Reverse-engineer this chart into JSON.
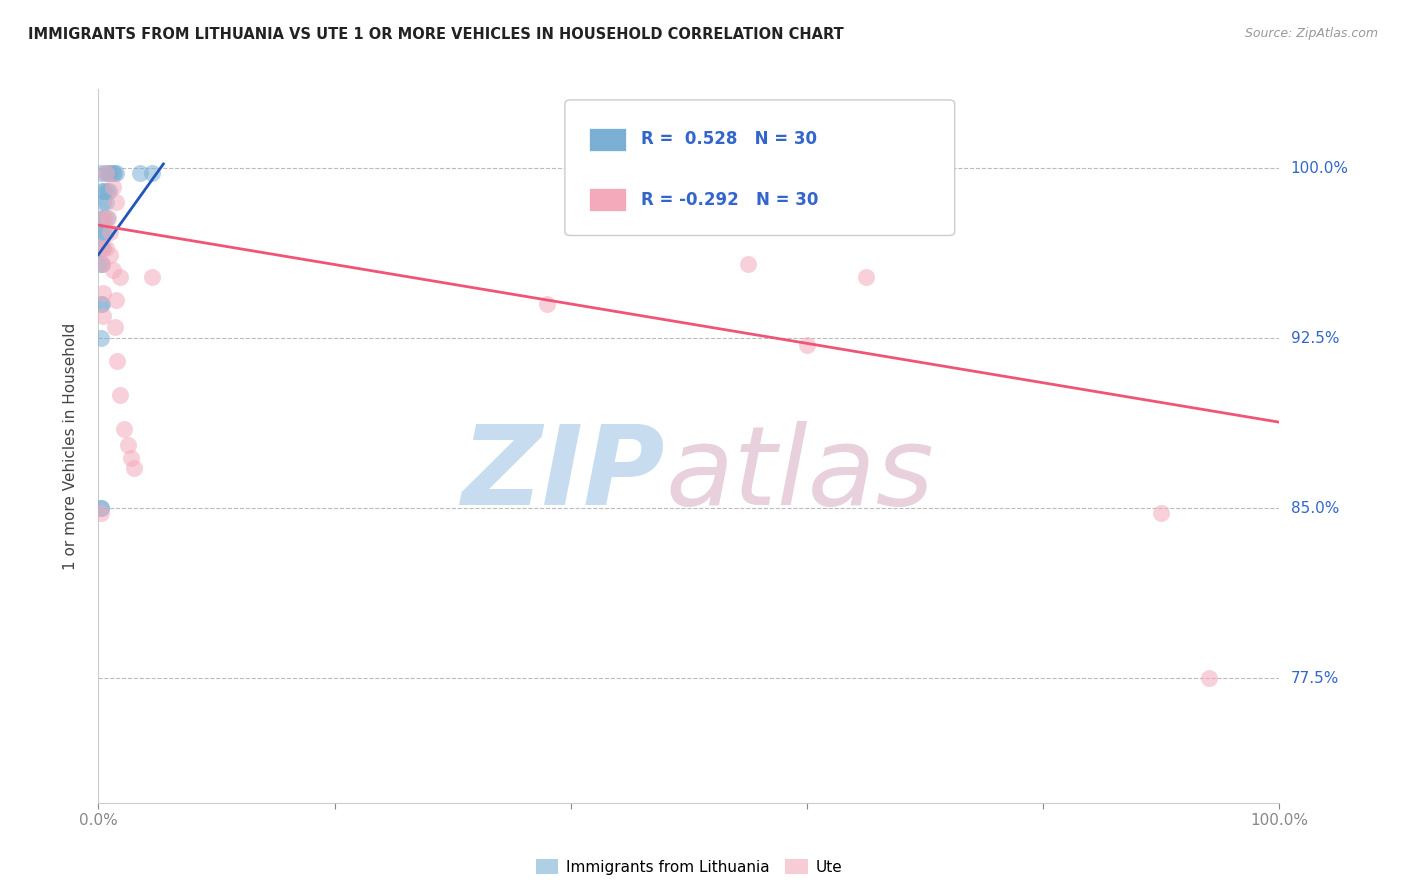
{
  "title": "IMMIGRANTS FROM LITHUANIA VS UTE 1 OR MORE VEHICLES IN HOUSEHOLD CORRELATION CHART",
  "source": "Source: ZipAtlas.com",
  "ylabel": "1 or more Vehicles in Household",
  "ytick_labels": [
    "100.0%",
    "92.5%",
    "85.0%",
    "77.5%"
  ],
  "ytick_values": [
    1.0,
    0.925,
    0.85,
    0.775
  ],
  "xlim": [
    0.0,
    1.0
  ],
  "ylim": [
    0.72,
    1.035
  ],
  "legend_r1": "R =  0.528",
  "legend_n1": "N = 30",
  "legend_r2": "R = -0.292",
  "legend_n2": "N = 30",
  "blue_color": "#7BAFD4",
  "pink_color": "#F4AABA",
  "blue_line_color": "#2255BB",
  "pink_line_color": "#EE5577",
  "blue_scatter": [
    [
      0.002,
      0.998
    ],
    [
      0.006,
      0.998
    ],
    [
      0.008,
      0.998
    ],
    [
      0.01,
      0.998
    ],
    [
      0.012,
      0.998
    ],
    [
      0.013,
      0.998
    ],
    [
      0.015,
      0.998
    ],
    [
      0.003,
      0.99
    ],
    [
      0.005,
      0.99
    ],
    [
      0.007,
      0.99
    ],
    [
      0.009,
      0.99
    ],
    [
      0.004,
      0.985
    ],
    [
      0.006,
      0.985
    ],
    [
      0.003,
      0.978
    ],
    [
      0.005,
      0.978
    ],
    [
      0.007,
      0.978
    ],
    [
      0.002,
      0.972
    ],
    [
      0.004,
      0.972
    ],
    [
      0.006,
      0.972
    ],
    [
      0.002,
      0.965
    ],
    [
      0.004,
      0.965
    ],
    [
      0.002,
      0.958
    ],
    [
      0.003,
      0.958
    ],
    [
      0.035,
      0.998
    ],
    [
      0.045,
      0.998
    ],
    [
      0.002,
      0.94
    ],
    [
      0.003,
      0.94
    ],
    [
      0.002,
      0.925
    ],
    [
      0.002,
      0.85
    ],
    [
      0.002,
      0.85
    ]
  ],
  "pink_scatter": [
    [
      0.006,
      0.998
    ],
    [
      0.012,
      0.992
    ],
    [
      0.015,
      0.985
    ],
    [
      0.005,
      0.978
    ],
    [
      0.008,
      0.978
    ],
    [
      0.01,
      0.972
    ],
    [
      0.003,
      0.965
    ],
    [
      0.006,
      0.965
    ],
    [
      0.01,
      0.962
    ],
    [
      0.003,
      0.958
    ],
    [
      0.012,
      0.955
    ],
    [
      0.018,
      0.952
    ],
    [
      0.004,
      0.945
    ],
    [
      0.015,
      0.942
    ],
    [
      0.004,
      0.935
    ],
    [
      0.014,
      0.93
    ],
    [
      0.016,
      0.915
    ],
    [
      0.018,
      0.9
    ],
    [
      0.55,
      0.958
    ],
    [
      0.65,
      0.952
    ],
    [
      0.38,
      0.94
    ],
    [
      0.6,
      0.922
    ],
    [
      0.9,
      0.848
    ],
    [
      0.94,
      0.775
    ],
    [
      0.002,
      0.848
    ],
    [
      0.025,
      0.878
    ],
    [
      0.03,
      0.868
    ],
    [
      0.022,
      0.885
    ],
    [
      0.028,
      0.872
    ],
    [
      0.045,
      0.952
    ]
  ],
  "blue_line_x": [
    0.0,
    0.055
  ],
  "blue_line_y": [
    0.962,
    1.002
  ],
  "pink_line_x": [
    0.0,
    1.0
  ],
  "pink_line_y": [
    0.975,
    0.888
  ]
}
